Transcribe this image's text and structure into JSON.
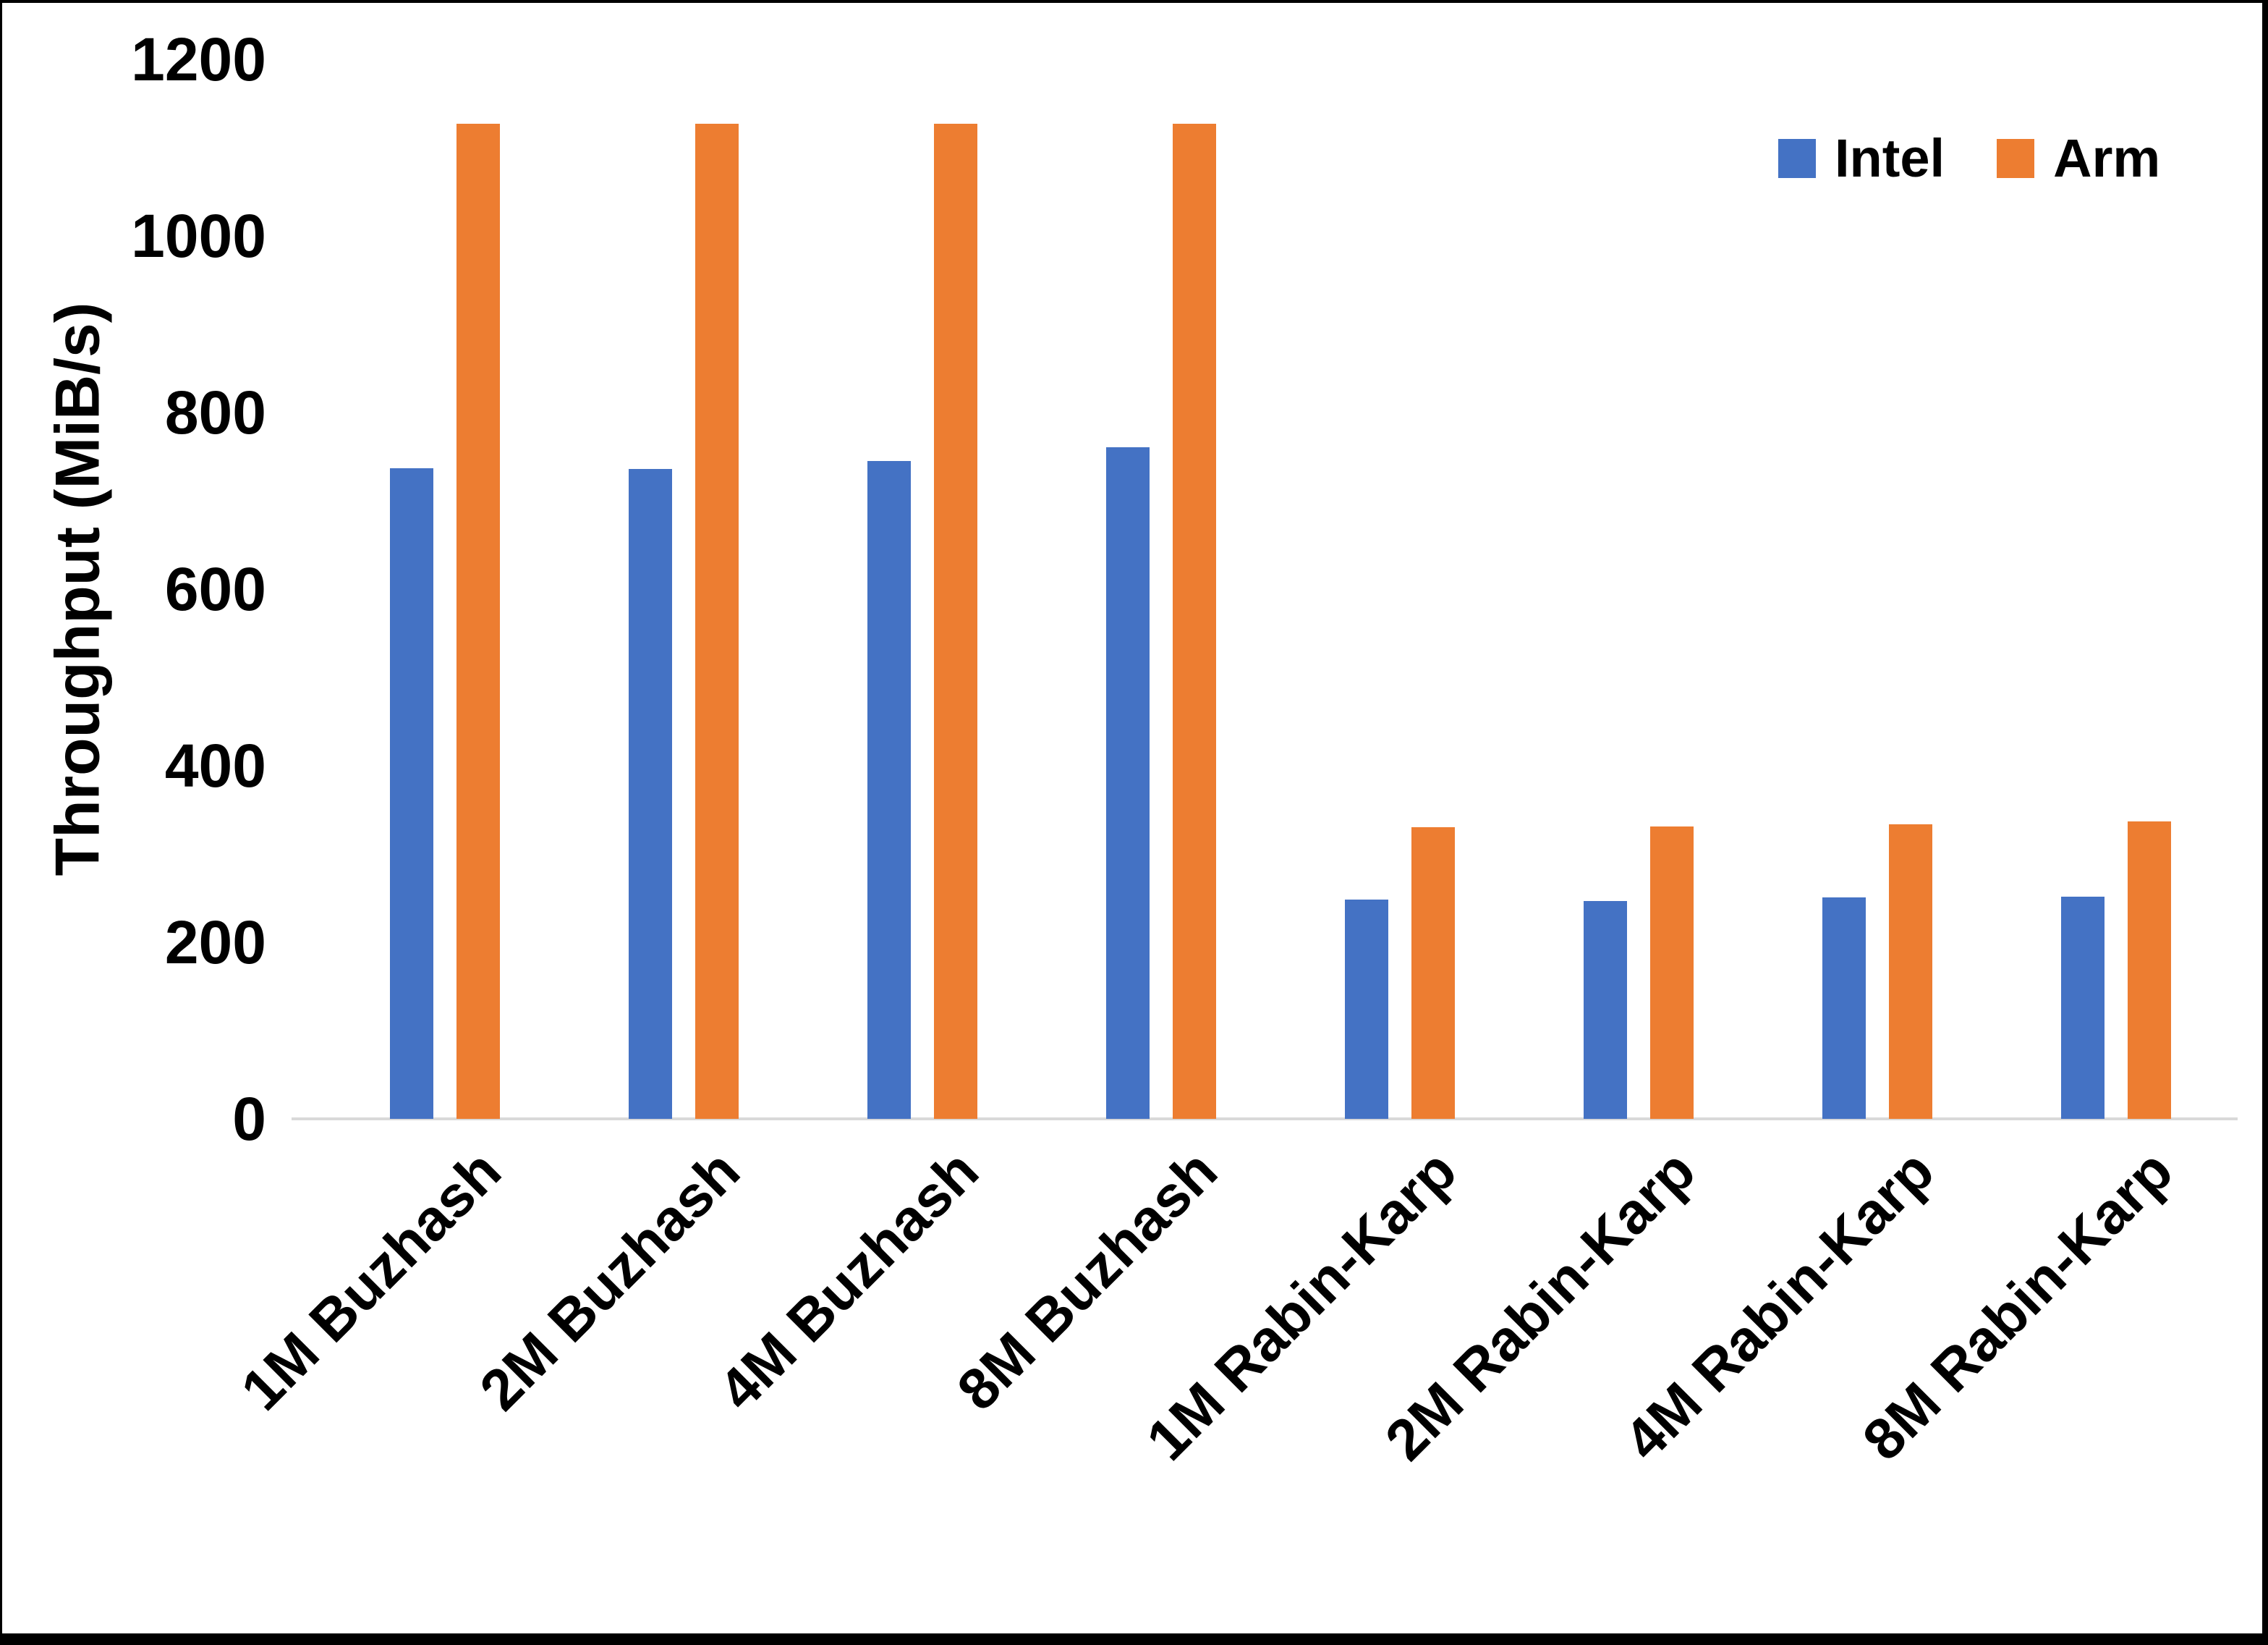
{
  "chart_data": {
    "type": "bar",
    "title": "",
    "ylabel": "Throughput (MiB/s)",
    "xlabel": "",
    "categories": [
      "1M Buzhash",
      "2M Buzhash",
      "4M Buzhash",
      "8M Buzhash",
      "1M Rabin-Karp",
      "2M Rabin-Karp",
      "4M Rabin-Karp",
      "8M Rabin-Karp"
    ],
    "series": [
      {
        "name": "Intel",
        "color": "#4472C4",
        "values": [
          737,
          736,
          745,
          761,
          248,
          247,
          251,
          252
        ]
      },
      {
        "name": "Arm",
        "color": "#ED7D31",
        "values": [
          1127,
          1127,
          1127,
          1127,
          330,
          331,
          334,
          337
        ]
      }
    ],
    "ylim": [
      0,
      1200
    ],
    "yticks": [
      0,
      200,
      400,
      600,
      800,
      1000,
      1200
    ],
    "grid": false,
    "legend_position": "top-right",
    "axis_line_color": "#D9D9D9"
  }
}
